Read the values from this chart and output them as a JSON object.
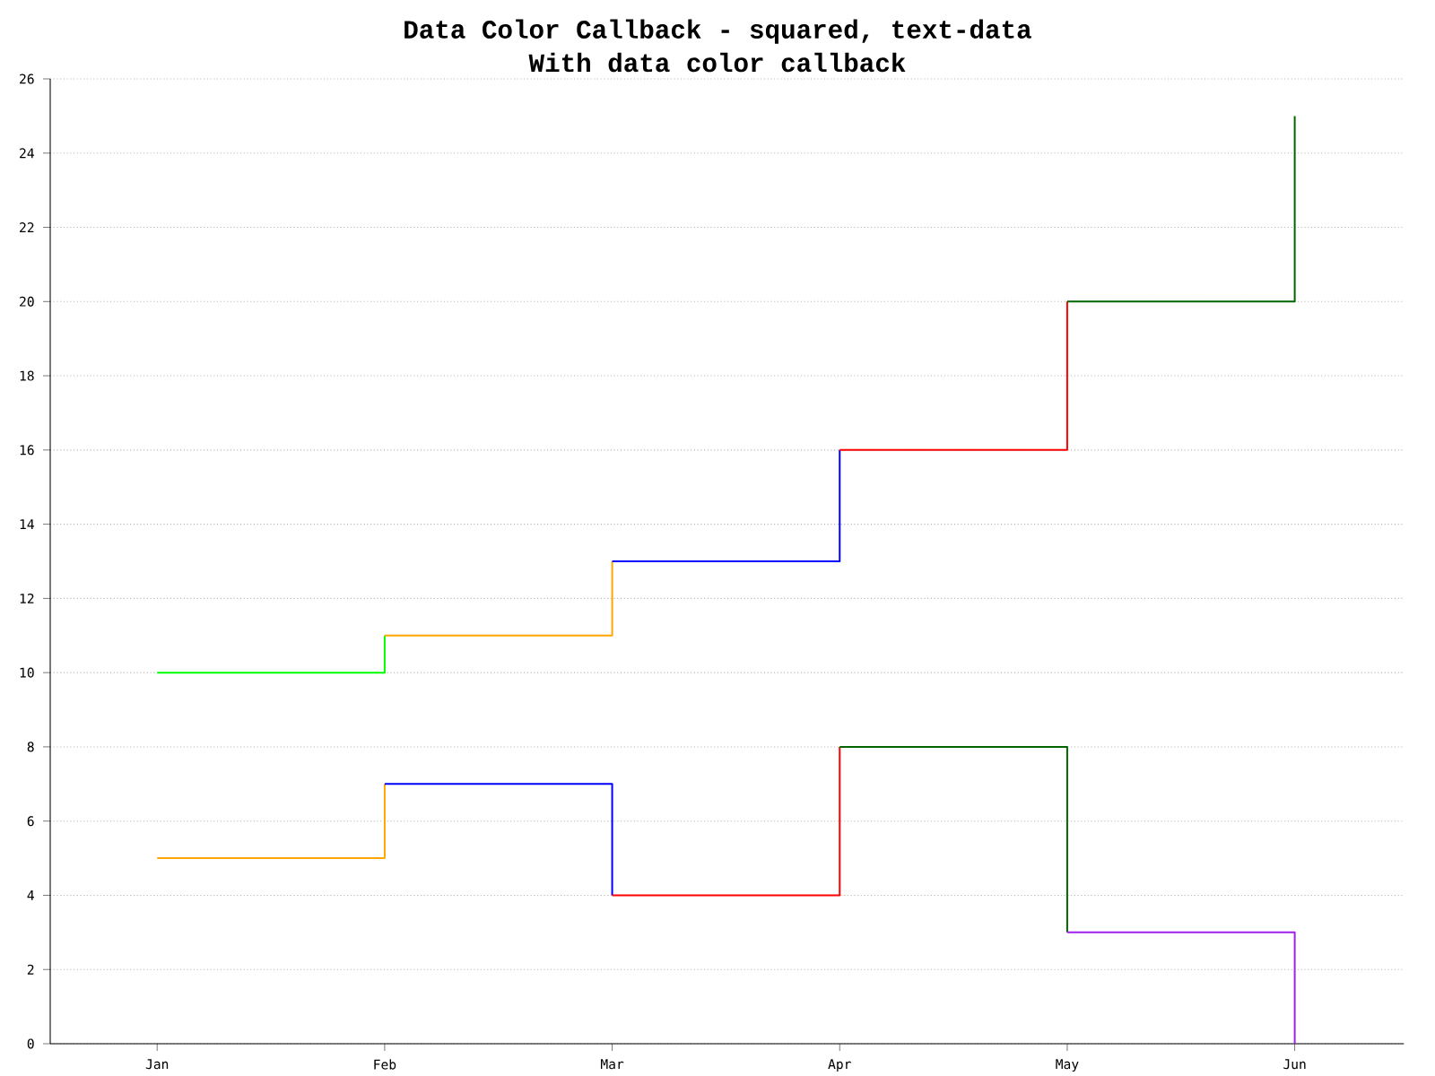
{
  "chart_data": {
    "type": "step",
    "title": "Data Color Callback - squared, text-data",
    "subtitle": "With data color callback",
    "categories": [
      "Jan",
      "Feb",
      "Mar",
      "Apr",
      "May",
      "Jun"
    ],
    "series": [
      {
        "color": "#00ff00",
        "values": [
          10,
          11,
          null,
          null,
          null,
          null
        ]
      },
      {
        "color": "#ffa500",
        "values": [
          null,
          11,
          13,
          null,
          null,
          null
        ]
      },
      {
        "color": "#0000ff",
        "values": [
          null,
          null,
          13,
          16,
          null,
          null
        ]
      },
      {
        "color": "#ff0000",
        "values": [
          null,
          null,
          null,
          16,
          20,
          null
        ]
      },
      {
        "color": "#006400",
        "values": [
          null,
          null,
          null,
          null,
          20,
          25
        ]
      },
      {
        "color": "#ffa500",
        "values": [
          5,
          7,
          null,
          null,
          null,
          null
        ]
      },
      {
        "color": "#0000ff",
        "values": [
          null,
          7,
          4,
          null,
          null,
          null
        ]
      },
      {
        "color": "#ff0000",
        "values": [
          null,
          null,
          4,
          8,
          null,
          null
        ]
      },
      {
        "color": "#006400",
        "values": [
          null,
          null,
          null,
          8,
          3,
          null
        ]
      },
      {
        "color": "#a020f0",
        "values": [
          null,
          null,
          null,
          null,
          3,
          0
        ]
      }
    ],
    "ylim": [
      0,
      26
    ],
    "yticks": [
      0,
      2,
      4,
      6,
      8,
      10,
      12,
      14,
      16,
      18,
      20,
      22,
      24,
      26
    ],
    "grid": "y",
    "line_style": "solid"
  }
}
